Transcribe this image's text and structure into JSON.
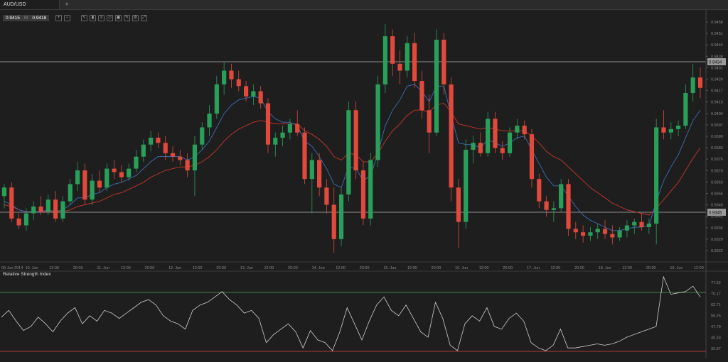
{
  "tab": {
    "label": "AUD/USD",
    "add": "+"
  },
  "quote": {
    "bid": "0.9415",
    "mid": "M",
    "ask": "0.9418"
  },
  "toolbar": [
    {
      "icon": "zoom-in-icon",
      "glyph": "+"
    },
    {
      "icon": "zoom-out-icon",
      "glyph": "−"
    },
    {
      "icon": "cursor-icon",
      "glyph": "↖"
    },
    {
      "icon": "candles-icon",
      "glyph": "▮"
    },
    {
      "icon": "indicators-icon",
      "glyph": "≡"
    },
    {
      "icon": "objects-icon",
      "glyph": "◇"
    },
    {
      "icon": "template-icon",
      "glyph": "▣"
    },
    {
      "icon": "draw-icon",
      "glyph": "✎"
    },
    {
      "icon": "settings-icon",
      "glyph": "⚙"
    },
    {
      "icon": "fullscreen-icon",
      "glyph": "⤢"
    }
  ],
  "price_axis": [
    "0.9458",
    "0.9451",
    "0.9444",
    "0.9438",
    "0.9431",
    "0.9424",
    "0.9417",
    "0.9410",
    "0.9404",
    "0.9397",
    "0.9390",
    "0.9383",
    "0.9376",
    "0.9370",
    "0.9363",
    "0.9356",
    "0.9349",
    "0.9342",
    "0.9336",
    "0.9329",
    "0.9322"
  ],
  "price_lines": {
    "upper": "0.9434",
    "lower": "0.9345"
  },
  "time_axis": [
    "09 Jun 2014",
    "10. Jun",
    "12:00",
    "20:00",
    "11. Jun",
    "12:00",
    "20:00",
    "12. Jun",
    "12:00",
    "20:00",
    "13. Jun",
    "12:00",
    "20:00",
    "14. Jun",
    "12:00",
    "20:00",
    "15. Jun",
    "12:00",
    "20:00",
    "16. Jun",
    "12:00",
    "20:00",
    "17. Jun",
    "12:00",
    "20:00",
    "18. Jun",
    "12:00",
    "20:00",
    "19. Jun",
    "12:00"
  ],
  "indicator": {
    "label": "Relative Strength Index",
    "axis": [
      "77.62",
      "70.17",
      "62.71",
      "55.25",
      "47.79",
      "40.33",
      "32.87"
    ],
    "upper_level": 70,
    "lower_level": 30
  },
  "colors": {
    "bull": "#29a05a",
    "bear": "#e0493b",
    "ma_fast": "#3d6fb6",
    "ma_slow": "#c9372c",
    "rsi": "#cfcfcf"
  },
  "chart_data": {
    "type": "candlestick",
    "symbol": "AUD/USD",
    "ylim": [
      0.9318,
      0.946
    ],
    "candles": [
      [
        0.9355,
        0.9362,
        0.9348,
        0.936
      ],
      [
        0.936,
        0.9363,
        0.934,
        0.9342
      ],
      [
        0.9342,
        0.9345,
        0.9336,
        0.9338
      ],
      [
        0.9338,
        0.9348,
        0.9335,
        0.9345
      ],
      [
        0.9345,
        0.9352,
        0.9341,
        0.9349
      ],
      [
        0.9349,
        0.9355,
        0.9344,
        0.9346
      ],
      [
        0.9346,
        0.9356,
        0.9344,
        0.9353
      ],
      [
        0.9353,
        0.9358,
        0.934,
        0.9342
      ],
      [
        0.9342,
        0.9355,
        0.934,
        0.9352
      ],
      [
        0.9352,
        0.9365,
        0.935,
        0.9362
      ],
      [
        0.9362,
        0.9375,
        0.9358,
        0.937
      ],
      [
        0.937,
        0.9374,
        0.935,
        0.9353
      ],
      [
        0.9353,
        0.9368,
        0.935,
        0.9364
      ],
      [
        0.9364,
        0.937,
        0.9357,
        0.936
      ],
      [
        0.936,
        0.9374,
        0.9358,
        0.9371
      ],
      [
        0.9371,
        0.9376,
        0.9365,
        0.9369
      ],
      [
        0.9369,
        0.9373,
        0.9363,
        0.9366
      ],
      [
        0.9366,
        0.9374,
        0.9364,
        0.9371
      ],
      [
        0.9371,
        0.9382,
        0.9369,
        0.9378
      ],
      [
        0.9378,
        0.9388,
        0.9375,
        0.9385
      ],
      [
        0.9385,
        0.9393,
        0.9381,
        0.9389
      ],
      [
        0.9389,
        0.9392,
        0.9383,
        0.9386
      ],
      [
        0.9386,
        0.939,
        0.9376,
        0.938
      ],
      [
        0.938,
        0.9384,
        0.9375,
        0.9378
      ],
      [
        0.9378,
        0.9382,
        0.9373,
        0.9376
      ],
      [
        0.9376,
        0.938,
        0.9366,
        0.937
      ],
      [
        0.937,
        0.939,
        0.9355,
        0.9385
      ],
      [
        0.9385,
        0.9398,
        0.9382,
        0.9395
      ],
      [
        0.9395,
        0.9408,
        0.939,
        0.9403
      ],
      [
        0.9403,
        0.9425,
        0.94,
        0.942
      ],
      [
        0.942,
        0.9433,
        0.9414,
        0.9428
      ],
      [
        0.9428,
        0.9432,
        0.9418,
        0.9423
      ],
      [
        0.9423,
        0.9428,
        0.9416,
        0.9419
      ],
      [
        0.9419,
        0.9422,
        0.941,
        0.9413
      ],
      [
        0.9413,
        0.942,
        0.9408,
        0.9416
      ],
      [
        0.9416,
        0.9419,
        0.9406,
        0.9409
      ],
      [
        0.9409,
        0.9412,
        0.938,
        0.9385
      ],
      [
        0.9385,
        0.9392,
        0.9378,
        0.9389
      ],
      [
        0.9389,
        0.9396,
        0.9384,
        0.9392
      ],
      [
        0.9392,
        0.94,
        0.9388,
        0.9397
      ],
      [
        0.9397,
        0.9405,
        0.939,
        0.9392
      ],
      [
        0.9392,
        0.9395,
        0.9362,
        0.9365
      ],
      [
        0.9365,
        0.938,
        0.9345,
        0.9376
      ],
      [
        0.9376,
        0.938,
        0.9355,
        0.936
      ],
      [
        0.936,
        0.9365,
        0.9345,
        0.935
      ],
      [
        0.935,
        0.936,
        0.9322,
        0.933
      ],
      [
        0.933,
        0.936,
        0.9326,
        0.9356
      ],
      [
        0.9356,
        0.941,
        0.9352,
        0.9405
      ],
      [
        0.9405,
        0.941,
        0.9365,
        0.937
      ],
      [
        0.937,
        0.9375,
        0.9338,
        0.9342
      ],
      [
        0.9342,
        0.938,
        0.9338,
        0.9376
      ],
      [
        0.9376,
        0.9425,
        0.9372,
        0.942
      ],
      [
        0.942,
        0.9455,
        0.9415,
        0.9448
      ],
      [
        0.9448,
        0.9452,
        0.9425,
        0.9432
      ],
      [
        0.9432,
        0.944,
        0.942,
        0.9428
      ],
      [
        0.9428,
        0.9448,
        0.9424,
        0.9444
      ],
      [
        0.9444,
        0.945,
        0.9418,
        0.9422
      ],
      [
        0.9422,
        0.9428,
        0.94,
        0.9405
      ],
      [
        0.9405,
        0.9414,
        0.938,
        0.9392
      ],
      [
        0.9392,
        0.9452,
        0.939,
        0.9446
      ],
      [
        0.9446,
        0.945,
        0.9414,
        0.942
      ],
      [
        0.942,
        0.9424,
        0.9352,
        0.936
      ],
      [
        0.936,
        0.9365,
        0.9325,
        0.934
      ],
      [
        0.934,
        0.9388,
        0.9336,
        0.9382
      ],
      [
        0.9382,
        0.939,
        0.9374,
        0.9386
      ],
      [
        0.9386,
        0.9392,
        0.9378,
        0.938
      ],
      [
        0.938,
        0.9404,
        0.9378,
        0.94
      ],
      [
        0.94,
        0.9404,
        0.938,
        0.9383
      ],
      [
        0.9383,
        0.9387,
        0.9376,
        0.938
      ],
      [
        0.938,
        0.9395,
        0.9378,
        0.9392
      ],
      [
        0.9392,
        0.94,
        0.9388,
        0.9396
      ],
      [
        0.9396,
        0.9399,
        0.9388,
        0.9391
      ],
      [
        0.9391,
        0.9394,
        0.936,
        0.9365
      ],
      [
        0.9365,
        0.9368,
        0.9348,
        0.9352
      ],
      [
        0.9352,
        0.9355,
        0.9343,
        0.9347
      ],
      [
        0.9347,
        0.9352,
        0.934,
        0.9348
      ],
      [
        0.9348,
        0.9365,
        0.9346,
        0.9362
      ],
      [
        0.9362,
        0.9365,
        0.9332,
        0.9336
      ],
      [
        0.9336,
        0.934,
        0.933,
        0.9334
      ],
      [
        0.9334,
        0.9338,
        0.9328,
        0.9332
      ],
      [
        0.9332,
        0.9337,
        0.9329,
        0.9334
      ],
      [
        0.9334,
        0.9339,
        0.933,
        0.9336
      ],
      [
        0.9336,
        0.9341,
        0.933,
        0.9333
      ],
      [
        0.9333,
        0.9338,
        0.9327,
        0.9331
      ],
      [
        0.9331,
        0.9337,
        0.9329,
        0.9335
      ],
      [
        0.9335,
        0.9341,
        0.9331,
        0.9338
      ],
      [
        0.9338,
        0.9342,
        0.9333,
        0.934
      ],
      [
        0.934,
        0.9345,
        0.9335,
        0.9337
      ],
      [
        0.9337,
        0.9342,
        0.9333,
        0.9339
      ],
      [
        0.9339,
        0.94,
        0.9327,
        0.9395
      ],
      [
        0.9395,
        0.9405,
        0.9388,
        0.9392
      ],
      [
        0.9392,
        0.9398,
        0.9388,
        0.9394
      ],
      [
        0.9394,
        0.9399,
        0.939,
        0.9396
      ],
      [
        0.9396,
        0.942,
        0.9394,
        0.9415
      ],
      [
        0.9415,
        0.9432,
        0.941,
        0.9424
      ],
      [
        0.9424,
        0.943,
        0.9412,
        0.9418
      ]
    ],
    "ma_fast": [
      0.9352,
      0.935,
      0.9347,
      0.9346,
      0.9346,
      0.9346,
      0.9347,
      0.9346,
      0.9347,
      0.935,
      0.9354,
      0.9354,
      0.9356,
      0.9357,
      0.936,
      0.9362,
      0.9363,
      0.9365,
      0.9367,
      0.9371,
      0.9375,
      0.9378,
      0.9378,
      0.9378,
      0.9378,
      0.9376,
      0.9378,
      0.9382,
      0.9387,
      0.9395,
      0.9403,
      0.9408,
      0.9411,
      0.9412,
      0.9413,
      0.9412,
      0.9404,
      0.94,
      0.9398,
      0.9398,
      0.9396,
      0.9387,
      0.9384,
      0.9378,
      0.9371,
      0.9362,
      0.936,
      0.9372,
      0.9371,
      0.9364,
      0.9367,
      0.938,
      0.9396,
      0.9405,
      0.9411,
      0.9419,
      0.942,
      0.9416,
      0.941,
      0.9419,
      0.9419,
      0.9402,
      0.9386,
      0.9385,
      0.9385,
      0.9383,
      0.9388,
      0.9386,
      0.9384,
      0.9386,
      0.9389,
      0.939,
      0.9382,
      0.9374,
      0.9366,
      0.9361,
      0.9361,
      0.9355,
      0.9349,
      0.9344,
      0.9341,
      0.9339,
      0.9337,
      0.9335,
      0.9335,
      0.9336,
      0.9337,
      0.9337,
      0.9338,
      0.9352,
      0.9364,
      0.9372,
      0.9379,
      0.9389,
      0.9399,
      0.9405
    ],
    "ma_slow": [
      0.935,
      0.9349,
      0.9347,
      0.9346,
      0.9346,
      0.9346,
      0.9346,
      0.9346,
      0.9346,
      0.9347,
      0.9349,
      0.935,
      0.9351,
      0.9352,
      0.9354,
      0.9356,
      0.9357,
      0.9359,
      0.9361,
      0.9363,
      0.9366,
      0.9368,
      0.937,
      0.9371,
      0.9372,
      0.9372,
      0.9373,
      0.9375,
      0.9378,
      0.9382,
      0.9387,
      0.9391,
      0.9394,
      0.9396,
      0.9398,
      0.9399,
      0.9398,
      0.9397,
      0.9397,
      0.9397,
      0.9397,
      0.9393,
      0.9391,
      0.9388,
      0.9384,
      0.9378,
      0.9376,
      0.938,
      0.9379,
      0.9375,
      0.9375,
      0.938,
      0.9387,
      0.9393,
      0.9397,
      0.9402,
      0.9405,
      0.9405,
      0.9404,
      0.9408,
      0.9409,
      0.9404,
      0.9397,
      0.9396,
      0.9395,
      0.9394,
      0.9395,
      0.9394,
      0.9393,
      0.9393,
      0.9393,
      0.9393,
      0.939,
      0.9386,
      0.9381,
      0.9378,
      0.9376,
      0.9372,
      0.9368,
      0.9364,
      0.936,
      0.9357,
      0.9354,
      0.9351,
      0.9349,
      0.9347,
      0.9346,
      0.9345,
      0.9344,
      0.9348,
      0.9353,
      0.9358,
      0.9363,
      0.937,
      0.9377,
      0.9383
    ],
    "rsi": [
      55,
      60,
      52,
      45,
      48,
      55,
      50,
      44,
      52,
      58,
      62,
      50,
      56,
      52,
      60,
      58,
      54,
      58,
      62,
      66,
      68,
      64,
      56,
      52,
      50,
      46,
      60,
      64,
      66,
      70,
      74,
      68,
      64,
      58,
      60,
      54,
      36,
      42,
      46,
      50,
      44,
      32,
      45,
      38,
      36,
      30,
      44,
      62,
      50,
      38,
      52,
      64,
      70,
      60,
      56,
      64,
      54,
      44,
      40,
      66,
      54,
      34,
      30,
      50,
      56,
      52,
      62,
      48,
      46,
      54,
      58,
      52,
      36,
      32,
      30,
      34,
      46,
      32,
      32,
      33,
      34,
      35,
      34,
      35,
      37,
      40,
      42,
      44,
      46,
      48,
      85,
      72,
      73,
      74,
      78,
      70
    ],
    "rsi_ylim": [
      30,
      85
    ]
  }
}
